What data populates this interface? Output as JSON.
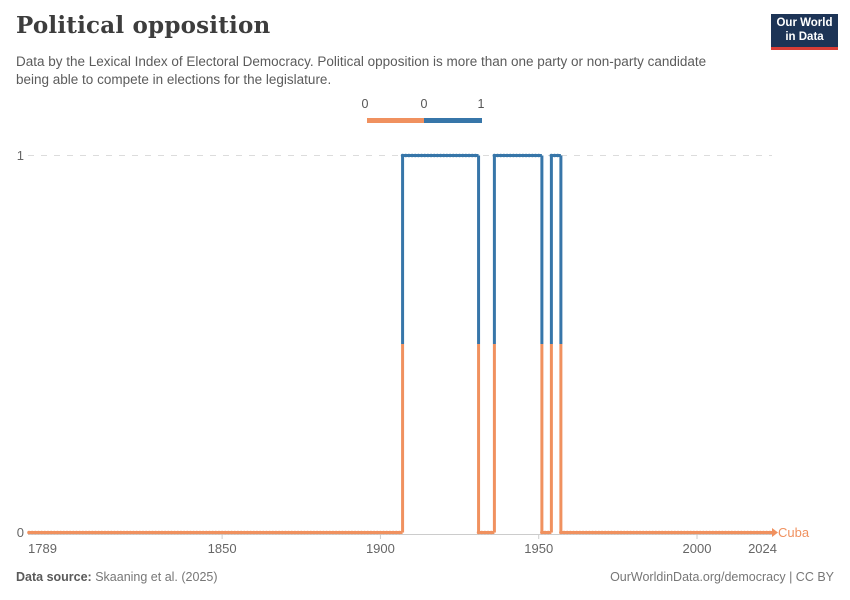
{
  "header": {
    "title": "Political opposition",
    "subtitle": "Data by the Lexical Index of Electoral Democracy. Political opposition is more than one party or non-party candidate being able to compete in elections for the legislature.",
    "logo": {
      "line1": "Our World",
      "line2": "in Data"
    }
  },
  "legend": {
    "edge_labels": [
      "0",
      "0",
      "1"
    ],
    "bins": [
      {
        "value": 0,
        "color": "#F0915F"
      },
      {
        "value": 1,
        "color": "#3776A9"
      }
    ]
  },
  "chart_data": {
    "type": "line",
    "title": "Political opposition",
    "entity": "Cuba",
    "entity_color": "#F0915F",
    "x_domain": [
      1789,
      2024
    ],
    "y_domain": [
      0,
      1
    ],
    "x_tick_labels": [
      "1789",
      "1850",
      "1900",
      "1950",
      "2000",
      "2024"
    ],
    "x_tick_years": [
      1789,
      1850,
      1900,
      1950,
      2000,
      2024
    ],
    "y_tick_labels": [
      "0",
      "1"
    ],
    "grid": "dashed-at-1",
    "legend_position": "top-center",
    "series": [
      {
        "name": "Cuba",
        "segments": [
          {
            "start": 1789,
            "end": 1906,
            "value": 0
          },
          {
            "start": 1907,
            "end": 1930,
            "value": 1
          },
          {
            "start": 1931,
            "end": 1935,
            "value": 0
          },
          {
            "start": 1936,
            "end": 1950,
            "value": 1
          },
          {
            "start": 1951,
            "end": 1953,
            "value": 0
          },
          {
            "start": 1954,
            "end": 1956,
            "value": 1
          },
          {
            "start": 1957,
            "end": 2024,
            "value": 0
          }
        ]
      }
    ],
    "colors": {
      "value0": "#F0915F",
      "value1": "#3776A9"
    }
  },
  "footer": {
    "source_label": "Data source:",
    "source_value": " Skaaning et al. (2025)",
    "right_text": "OurWorldinData.org/democracy | CC BY"
  }
}
